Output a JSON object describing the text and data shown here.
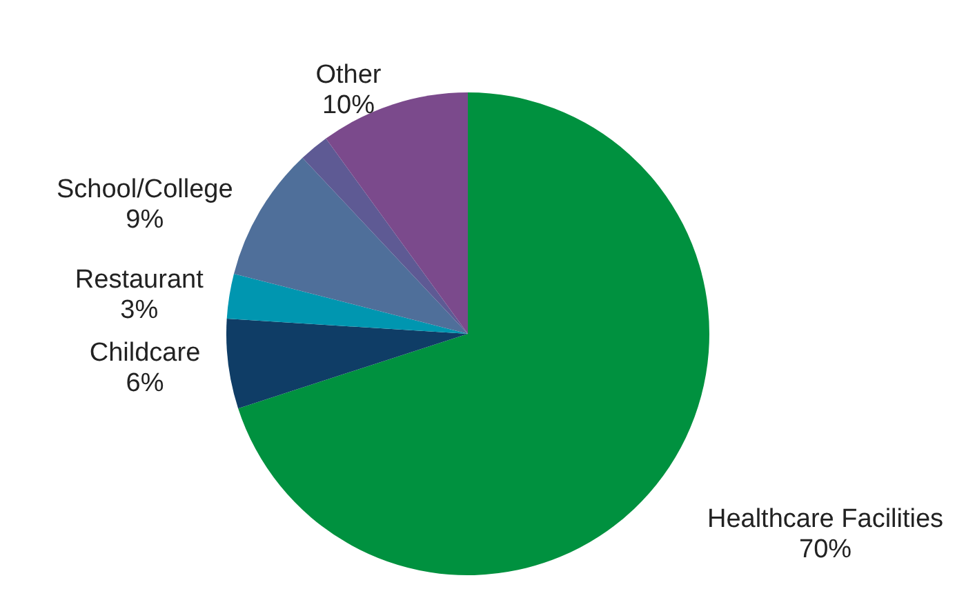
{
  "chart_data": {
    "type": "pie",
    "categories": [
      "Healthcare Facilities",
      "Childcare",
      "Restaurant",
      "School/College",
      null,
      "Other"
    ],
    "values": [
      70,
      6,
      3,
      9,
      2,
      10
    ],
    "value_labels": [
      "70%",
      "6%",
      "3%",
      "9%",
      null,
      "10%"
    ],
    "colors": [
      "#00913f",
      "#0f3d66",
      "#0096b0",
      "#4f6f9a",
      "#5e5a94",
      "#7b4a8c"
    ],
    "legend": false
  }
}
